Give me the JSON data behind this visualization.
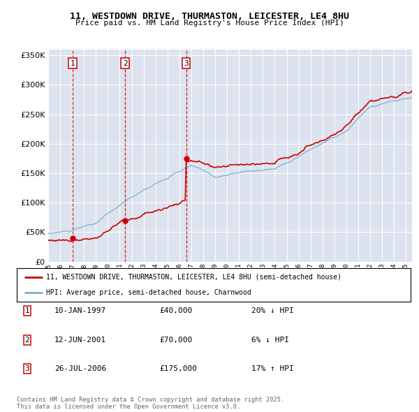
{
  "title1": "11, WESTDOWN DRIVE, THURMASTON, LEICESTER, LE4 8HU",
  "title2": "Price paid vs. HM Land Registry's House Price Index (HPI)",
  "legend_red": "11, WESTDOWN DRIVE, THURMASTON, LEICESTER, LE4 8HU (semi-detached house)",
  "legend_blue": "HPI: Average price, semi-detached house, Charnwood",
  "sales": [
    {
      "label": "1",
      "date_num": 1997.04,
      "price": 40000
    },
    {
      "label": "2",
      "date_num": 2001.45,
      "price": 70000
    },
    {
      "label": "3",
      "date_num": 2006.57,
      "price": 175000
    }
  ],
  "table_rows": [
    [
      "1",
      "10-JAN-1997",
      "£40,000",
      "20% ↓ HPI"
    ],
    [
      "2",
      "12-JUN-2001",
      "£70,000",
      "6% ↓ HPI"
    ],
    [
      "3",
      "26-JUL-2006",
      "£175,000",
      "17% ↑ HPI"
    ]
  ],
  "footer": "Contains HM Land Registry data © Crown copyright and database right 2025.\nThis data is licensed under the Open Government Licence v3.0.",
  "plot_bg": "#dde3ee",
  "grid_color": "#ffffff",
  "red_color": "#cc0000",
  "blue_color": "#7bafd4",
  "ylim_max": 360000,
  "xlim_start": 1995.0,
  "xlim_end": 2025.5,
  "hpi_seed": 10,
  "price_seed": 77
}
